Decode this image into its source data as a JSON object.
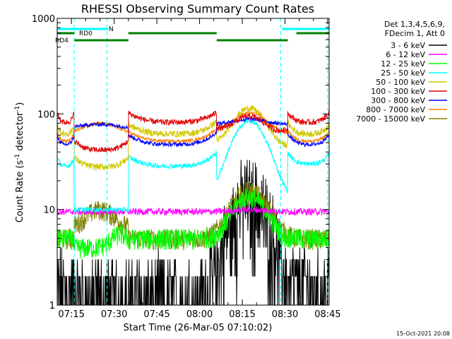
{
  "chart_data": {
    "type": "line",
    "title": "RHESSI Observing Summary Count Rates",
    "xlabel": "Start Time (26-Mar-05 07:10:02)",
    "ylabel_main": "Count Rate (s",
    "ylabel_sup1": "-1",
    "ylabel_mid": " detector",
    "ylabel_sup2": "-1",
    "ylabel_end": ")",
    "y_scale": "log",
    "ylim": [
      1,
      1000
    ],
    "xlim_minutes": [
      0,
      95.5
    ],
    "x_ticks": [
      {
        "m": 5,
        "label": "07:15"
      },
      {
        "m": 20,
        "label": "07:30"
      },
      {
        "m": 35,
        "label": "07:45"
      },
      {
        "m": 50,
        "label": "08:00"
      },
      {
        "m": 65,
        "label": "08:15"
      },
      {
        "m": 80,
        "label": "08:30"
      },
      {
        "m": 95,
        "label": "08:45"
      }
    ],
    "y_ticks": [
      {
        "v": 1,
        "label": "1"
      },
      {
        "v": 10,
        "label": "10"
      },
      {
        "v": 100,
        "label": "100"
      },
      {
        "v": 1000,
        "label": "1000"
      }
    ],
    "legend_header": [
      "Det 1,3,4,5,6,9,",
      "FDecim 1, Att 0"
    ],
    "legend_position": "right",
    "series": [
      {
        "name": "3 - 6 keV",
        "color": "#000000"
      },
      {
        "name": "6 - 12 keV",
        "color": "#ff00ff"
      },
      {
        "name": "12 - 25 keV",
        "color": "#00ff00"
      },
      {
        "name": "25 - 50 keV",
        "color": "#00ffff"
      },
      {
        "name": "50 - 100 keV",
        "color": "#d2c800"
      },
      {
        "name": "100 - 300 keV",
        "color": "#e00000"
      },
      {
        "name": "300 - 800 keV",
        "color": "#0000ff"
      },
      {
        "name": "800 - 7000 keV",
        "color": "#ff8000"
      },
      {
        "name": "7000 - 15000 keV",
        "color": "#808000"
      }
    ],
    "flags": [
      {
        "label": "N",
        "color": "#00ffff",
        "segments": [
          [
            0,
            18
          ],
          [
            79,
            95.5
          ]
        ]
      },
      {
        "label": "RD0",
        "color": "#008000",
        "segments": [
          [
            0,
            6
          ],
          [
            25,
            56
          ],
          [
            84,
            95.5
          ]
        ]
      },
      {
        "label": "RD4",
        "color": "#008000",
        "segments": [
          [
            6,
            25
          ],
          [
            56,
            81
          ]
        ]
      }
    ],
    "night_boundaries_minutes": [
      6,
      17.5,
      78.5,
      95
    ],
    "saa_transitions_minutes": [
      6,
      25,
      56,
      81
    ],
    "footer_date": "15-Oct-2021 20:08"
  }
}
